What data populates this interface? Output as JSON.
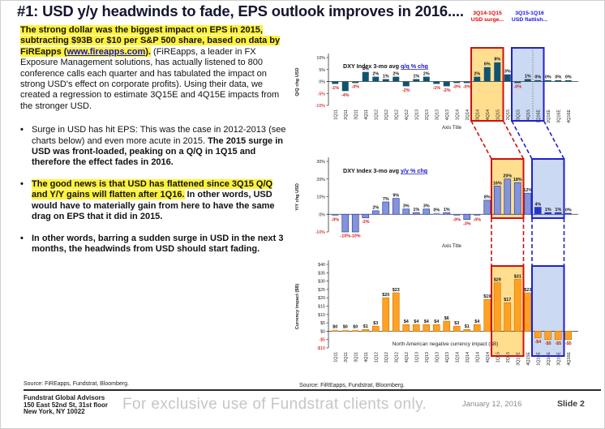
{
  "slide": {
    "title": "#1: USD y/y headwinds to fade, EPS outlook improves in 2016....",
    "annotations": {
      "surge": {
        "line1": "3Q14-1Q15",
        "line2": "USD surge...",
        "color": "#E00000"
      },
      "flattish": {
        "line1": "3Q15-1Q16",
        "line2": "USD flattish...",
        "color": "#1414E0"
      }
    }
  },
  "left_panel": {
    "intro": {
      "highlight_1": "The strong dollar was the biggest impact on EPS in 2015, subtracting $93B or $10 per S&P 500 share, based on data by FiREapps (",
      "link": "www.fireapps.com",
      "highlight_2": ").",
      "normal": "(FiREapps, a leader in FX Exposure Management solutions, has actually listened to 800 conference calls each quarter and has tabulated the impact on strong USD's effect on corporate profits).  Using their data, we created a regression to estimate 3Q15E and 4Q15E impacts from the stronger USD."
    },
    "bullets": [
      {
        "normal": "Surge in USD has hit EPS: This was the case in 2012-2013 (see charts below) and even more acute in 2015. ",
        "bold": "The 2015 surge in USD was front-loaded, peaking on a Q/Q in 1Q15 and therefore the effect fades in 2016."
      },
      {
        "highlight_bold": "The good news is that USD has flattened since 3Q15 Q/Q and Y/Y gains will flatten after 1Q16.",
        "bold": "  In other words, USD would have to materially gain from here to have the same drag on EPS that it did in 2015."
      },
      {
        "bold": "In other words, barring a sudden surge in USD in the next 3 months, the headwinds from USD should start fading."
      }
    ],
    "source": "Source: FiREapps, Fundstrat, Bloomberg."
  },
  "charts_source": "Source: FiREapps, Fundstrat, Bloomberg.",
  "footer": {
    "company": "Fundstrat Global Advisors",
    "address1": "150 East 52nd St, 31st floor",
    "address2": "New York, NY 10022",
    "watermark": "For exclusive use of Fundstrat clients only.",
    "date": "January 12, 2016",
    "slide_number": "Slide 2"
  },
  "chart_data": [
    {
      "type": "bar",
      "title": "DXY Index 3-mo avg ",
      "title_em": "q/q % chg",
      "ylabel": "Q/Q chg USD",
      "xlabel": "Axis Title",
      "categories": [
        "1Q11",
        "2Q11",
        "3Q11",
        "4Q11",
        "1Q12",
        "2Q12",
        "3Q12",
        "4Q12",
        "1Q13",
        "2Q13",
        "3Q13",
        "4Q13",
        "1Q14",
        "2Q14",
        "3Q14",
        "4Q14",
        "1Q15",
        "2Q15",
        "3Q15",
        "4Q15",
        "1Q16E",
        "2Q16E",
        "3Q16E",
        "4Q16E"
      ],
      "values": [
        -1,
        -4,
        -0.3,
        4,
        2,
        1,
        2,
        -2,
        1,
        2,
        -1,
        -2,
        -0.3,
        -0.3,
        2,
        6,
        8,
        3,
        -0.3,
        1,
        0.15,
        0.15,
        0.15,
        0.15
      ],
      "labels": [
        "-1%",
        "-4%",
        "-0%",
        "4%",
        "2%",
        "1%",
        "2%",
        "-2%",
        "1%",
        "2%",
        "-1%",
        "-2%",
        "-0%",
        "-0%",
        "2%",
        "6%",
        "8%",
        "3%",
        "-0%",
        "1%",
        "0%",
        "0%",
        "0%",
        "0%"
      ],
      "ylim": [
        -10,
        10
      ],
      "ytick_values": [
        10,
        5,
        0,
        -5,
        -10
      ],
      "ytick_labels": [
        "10%",
        "5%",
        "0%",
        "-5%",
        "-10%"
      ],
      "bar_color": "#11536F",
      "neg_label_color": "#D02020",
      "show_x_labels": true,
      "highlight_red": {
        "from": 14,
        "to": 16
      },
      "highlight_blue": {
        "from": 18,
        "to": 20,
        "divider_at": 20
      }
    },
    {
      "type": "bar",
      "title": "DXY Index 3-mo avg ",
      "title_em": "y/y % chg",
      "ylabel": "Y/Y chg USD",
      "xlabel": "Axis Title",
      "categories": [
        "1Q11",
        "2Q11",
        "3Q11",
        "4Q11",
        "1Q12",
        "2Q12",
        "3Q12",
        "4Q12",
        "1Q13",
        "2Q13",
        "3Q13",
        "4Q13",
        "1Q14",
        "2Q14",
        "3Q14",
        "4Q14",
        "1Q15",
        "2Q15",
        "3Q15",
        "4Q15",
        "1Q16E",
        "2Q16E",
        "3Q16E",
        "4Q16E"
      ],
      "values": [
        -0.3,
        -10,
        -10,
        -2,
        2,
        7,
        9,
        3,
        1,
        3,
        0.3,
        1,
        -0.3,
        -3,
        -0.3,
        8,
        16,
        20,
        18,
        12,
        4,
        1,
        1,
        0.3
      ],
      "labels": [
        "-0%",
        "-10%",
        "-10%",
        "-2%",
        "2%",
        "7%",
        "9%",
        "3%",
        "1%",
        "3%",
        "0%",
        "1%",
        "-0%",
        "-3%",
        "-0%",
        "8%",
        "16%",
        "20%",
        "18%",
        "12%",
        "4%",
        "1%",
        "1%",
        "0%"
      ],
      "ylim": [
        -10,
        30
      ],
      "ytick_values": [
        30,
        20,
        10,
        0,
        -10
      ],
      "ytick_labels": [
        "30%",
        "20%",
        "10%",
        "0%",
        "-10%"
      ],
      "bar_color": "#8394D8",
      "bar_stroke": "#2E3FAE",
      "estimate_color": "#2336C8",
      "estimates_from": 20,
      "neg_label_color": "#D02020",
      "show_x_labels": false,
      "highlight_red": {
        "from": 16,
        "to": 18
      },
      "highlight_blue": {
        "from": 20,
        "to": 22
      }
    },
    {
      "type": "bar",
      "annotation": "North American negative currency impact ($B)",
      "ylabel": "Currency impact ($B)",
      "categories": [
        "1Q11",
        "2Q11",
        "3Q11",
        "4Q11",
        "1Q12",
        "2Q12",
        "3Q12",
        "4Q12",
        "1Q13",
        "2Q13",
        "3Q13",
        "4Q13",
        "1Q14",
        "2Q14",
        "3Q14",
        "4Q14",
        "1Q15",
        "2Q15",
        "3Q15E",
        "4Q15E",
        "1Q16E",
        "2Q16E",
        "3Q16E",
        "4Q16E"
      ],
      "values": [
        0,
        0,
        0,
        1,
        3,
        20,
        23,
        4,
        4,
        4,
        4,
        6,
        3,
        1,
        4,
        19,
        29,
        17,
        31,
        23,
        -4,
        -5,
        -5,
        -5
      ],
      "labels": [
        "$0",
        "$0",
        "$0",
        "$1",
        "$3",
        "$20",
        "$23",
        "$4",
        "$4",
        "$4",
        "$4",
        "$6",
        "$3",
        "$1",
        "$4",
        "$19",
        "$29",
        "$17",
        "$31",
        "$23",
        "-$4",
        "-$5",
        "-$5",
        "-$5"
      ],
      "ylim": [
        -10,
        40
      ],
      "ytick_values": [
        40,
        35,
        30,
        25,
        20,
        15,
        10,
        5,
        0,
        -5,
        -10
      ],
      "ytick_labels": [
        "$40",
        "$35",
        "$30",
        "$25",
        "$20",
        "$15",
        "$10",
        "$5",
        "$0",
        "-$5",
        "-$10"
      ],
      "bar_color": "#FFA125",
      "bar_stroke": "#D47C00",
      "neg_label_color": "#B52A10",
      "show_x_labels": true,
      "highlight_red": {
        "from": 16,
        "to": 18
      },
      "highlight_blue": {
        "from": 20,
        "to": 22
      }
    }
  ],
  "chart_style": {
    "red_box_border": "#D01010",
    "red_box_fill": "#FFDE8F",
    "blue_box_border": "#2121CC",
    "blue_box_fill": "#CBD9F2",
    "title_link_color": "#1515CC"
  }
}
